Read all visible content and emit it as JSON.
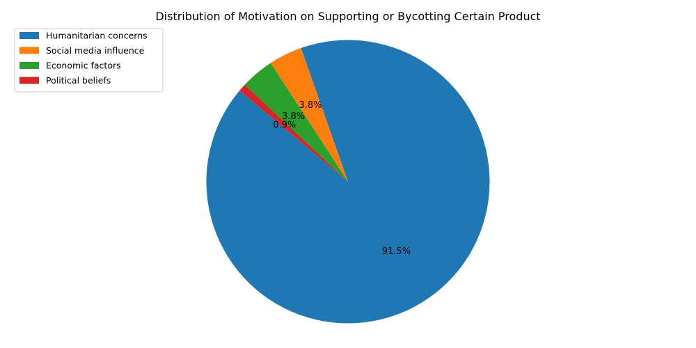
{
  "chart_data": {
    "type": "pie",
    "title": "Distribution of Motivation on Supporting or Bycotting Certain Product",
    "legend_position": "top-left",
    "start_angle_deg": 140,
    "direction": "counterclockwise",
    "slices": [
      {
        "label": "Humanitarian concerns",
        "value": 91.5,
        "pct_label": "91.5%",
        "color": "#1f77b4"
      },
      {
        "label": "Social media influence",
        "value": 3.8,
        "pct_label": "3.8%",
        "color": "#ff7f0e"
      },
      {
        "label": "Economic factors",
        "value": 3.8,
        "pct_label": "3.8%",
        "color": "#2ca02c"
      },
      {
        "label": "Political beliefs",
        "value": 0.9,
        "pct_label": "0.9%",
        "color": "#d62728"
      }
    ]
  }
}
